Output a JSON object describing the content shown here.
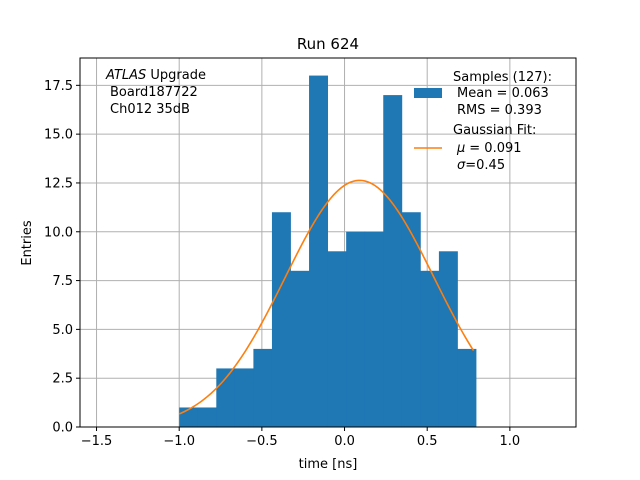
{
  "chart_data": {
    "type": "histogram",
    "title": "Run 624",
    "xlabel": "time [ns]",
    "ylabel": "Entries",
    "xlim": [
      -1.6,
      1.4
    ],
    "ylim": [
      0,
      18.9
    ],
    "grid": true,
    "xticks": [
      -1.5,
      -1.0,
      -0.5,
      0.0,
      0.5,
      1.0
    ],
    "xtick_labels": [
      "−1.5",
      "−1.0",
      "−0.5",
      "0.0",
      "0.5",
      "1.0"
    ],
    "yticks": [
      0.0,
      2.5,
      5.0,
      7.5,
      10.0,
      12.5,
      15.0,
      17.5
    ],
    "ytick_labels": [
      "0.0",
      "2.5",
      "5.0",
      "7.5",
      "10.0",
      "12.5",
      "15.0",
      "17.5"
    ],
    "bin_edges": [
      -1.0,
      -0.8878,
      -0.7756,
      -0.6634,
      -0.5512,
      -0.439,
      -0.3268,
      -0.2146,
      -0.1024,
      0.0098,
      0.122,
      0.2342,
      0.3464,
      0.4586,
      0.5708,
      0.683,
      0.7952
    ],
    "counts": [
      1,
      1,
      3,
      3,
      4,
      11,
      8,
      18,
      9,
      10,
      10,
      17,
      11,
      8,
      9,
      4
    ],
    "bar_color": "#1f77b4",
    "fit": {
      "name": "Gaussian Fit",
      "mu": 0.091,
      "sigma": 0.45,
      "x_range": [
        -1.0,
        0.78
      ],
      "color": "#ff7f0e"
    },
    "legend": {
      "placement": "top-right",
      "samples_title": "Samples (127):",
      "mean_line": "Mean = 0.063",
      "rms_line": "RMS = 0.393",
      "fit_title": "Gaussian Fit:",
      "mu_symbol": "μ",
      "mu_value": "= 0.091",
      "sigma_symbol": "σ",
      "sigma_value": "=0.45"
    },
    "annotation": {
      "italic": "ATLAS",
      "rest": " Upgrade",
      "line2": "Board187722",
      "line3": "Ch012 35dB"
    }
  }
}
